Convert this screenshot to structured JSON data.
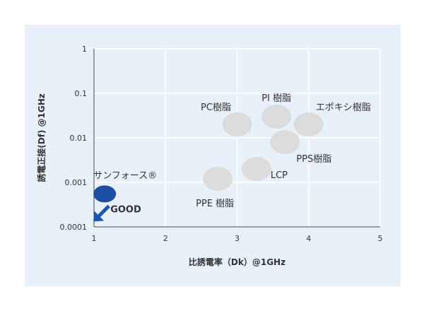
{
  "chart_data": {
    "type": "scatter",
    "xlabel": "比誘電率（Dk）@1GHz",
    "ylabel": "誘電正接(Df) @1GHz",
    "xlim": [
      1,
      5
    ],
    "ylim": [
      0.0001,
      1
    ],
    "yscale": "log",
    "xticks": [
      "1",
      "2",
      "3",
      "4",
      "5"
    ],
    "yticks": [
      "0.0001",
      "0.001",
      "0.01",
      "0.1",
      "1"
    ],
    "grid": true,
    "points": [
      {
        "label": "PC樹脂",
        "x": 3.0,
        "y": 0.02,
        "color": "#dcdcdc",
        "label_color": "#333333"
      },
      {
        "label": "PI 樹脂",
        "x": 3.55,
        "y": 0.03,
        "color": "#dcdcdc",
        "label_color": "#333333"
      },
      {
        "label": "エポキシ樹脂",
        "x": 4.0,
        "y": 0.02,
        "color": "#dcdcdc",
        "label_color": "#333333"
      },
      {
        "label": "PPS樹脂",
        "x": 3.67,
        "y": 0.008,
        "color": "#dcdcdc",
        "label_color": "#333333"
      },
      {
        "label": "LCP",
        "x": 3.27,
        "y": 0.002,
        "color": "#dcdcdc",
        "label_color": "#333333"
      },
      {
        "label": "PPE 樹脂",
        "x": 2.73,
        "y": 0.0012,
        "color": "#dcdcdc",
        "label_color": "#333333"
      },
      {
        "label": "サンフォース®",
        "x": 1.15,
        "y": 0.00055,
        "color": "#1a4fa3",
        "label_color": "#1a56b0"
      }
    ],
    "annotation": {
      "text": "GOOD",
      "color": "#1a56b0"
    }
  },
  "colors": {
    "panel_background": "#e8f1fa",
    "grid": "#ffffff",
    "axis": "#444444"
  }
}
